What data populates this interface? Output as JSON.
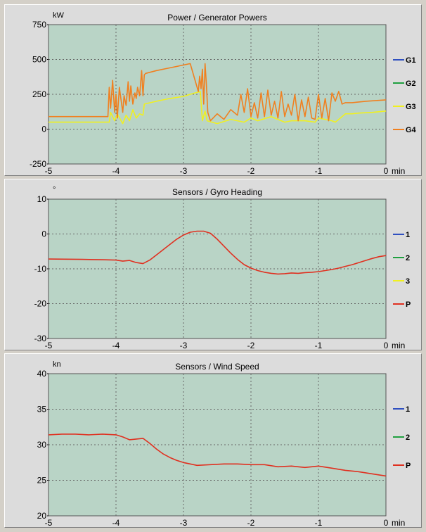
{
  "chart_data": [
    {
      "type": "line",
      "title": "Power / Generator Powers",
      "yunit": "kW",
      "xunit": "min",
      "ylim": [
        -250,
        750
      ],
      "yticks": [
        "750",
        "500",
        "250",
        "0",
        "-250"
      ],
      "ytick_values": [
        750,
        500,
        250,
        0,
        -250
      ],
      "xlim": [
        -5,
        0
      ],
      "xticks": [
        "-5",
        "-4",
        "-3",
        "-2",
        "-1",
        "0"
      ],
      "xtick_values": [
        -5,
        -4,
        -3,
        -2,
        -1,
        0
      ],
      "grid": true,
      "legend_position": "right",
      "series": [
        {
          "name": "G1",
          "color": "#3050c0",
          "x": [],
          "y": []
        },
        {
          "name": "G2",
          "color": "#20a040",
          "x": [],
          "y": []
        },
        {
          "name": "G3",
          "color": "#f0f020",
          "x": [
            -5,
            -4.1,
            -4.08,
            -4.02,
            -3.98,
            -3.9,
            -3.85,
            -3.8,
            -3.75,
            -3.7,
            -3.65,
            -3.6,
            -3.58,
            -3.4,
            -3.2,
            -3.0,
            -2.9,
            -2.75,
            -2.72,
            -2.68,
            -2.65,
            -2.5,
            -2.3,
            -2.1,
            -2.0,
            -1.9,
            -1.7,
            -1.5,
            -1.4,
            -1.2,
            -1.05,
            -1.0,
            -0.8,
            -0.75,
            -0.6,
            -0.5,
            -0.4,
            -0.2,
            0
          ],
          "y": [
            50,
            50,
            120,
            60,
            110,
            40,
            100,
            60,
            140,
            80,
            110,
            100,
            180,
            200,
            220,
            235,
            250,
            270,
            60,
            130,
            60,
            40,
            70,
            50,
            80,
            60,
            90,
            50,
            60,
            60,
            50,
            80,
            60,
            50,
            110,
            110,
            115,
            120,
            130
          ]
        },
        {
          "name": "G4",
          "color": "#f08020",
          "x": [
            -5,
            -4.12,
            -4.1,
            -4.08,
            -4.05,
            -4.02,
            -4.0,
            -3.98,
            -3.95,
            -3.9,
            -3.88,
            -3.85,
            -3.82,
            -3.8,
            -3.78,
            -3.75,
            -3.72,
            -3.7,
            -3.68,
            -3.65,
            -3.62,
            -3.6,
            -3.58,
            -3.56,
            -3.4,
            -3.2,
            -3.0,
            -2.9,
            -2.78,
            -2.76,
            -2.74,
            -2.72,
            -2.7,
            -2.68,
            -2.66,
            -2.64,
            -2.62,
            -2.6,
            -2.5,
            -2.4,
            -2.3,
            -2.2,
            -2.15,
            -2.1,
            -2.05,
            -2.0,
            -1.95,
            -1.9,
            -1.85,
            -1.8,
            -1.75,
            -1.7,
            -1.65,
            -1.6,
            -1.55,
            -1.5,
            -1.45,
            -1.4,
            -1.35,
            -1.3,
            -1.25,
            -1.2,
            -1.15,
            -1.1,
            -1.05,
            -1.0,
            -0.95,
            -0.9,
            -0.85,
            -0.8,
            -0.75,
            -0.7,
            -0.65,
            -0.6,
            -0.5,
            -0.3,
            0
          ],
          "y": [
            90,
            90,
            300,
            150,
            350,
            120,
            250,
            80,
            300,
            120,
            240,
            170,
            340,
            200,
            310,
            180,
            260,
            220,
            300,
            240,
            420,
            240,
            390,
            400,
            420,
            440,
            460,
            470,
            270,
            380,
            290,
            430,
            180,
            470,
            320,
            120,
            90,
            60,
            110,
            70,
            140,
            100,
            250,
            120,
            290,
            90,
            190,
            80,
            260,
            90,
            280,
            100,
            200,
            80,
            270,
            90,
            180,
            100,
            250,
            60,
            210,
            90,
            230,
            80,
            70,
            250,
            80,
            220,
            60,
            260,
            200,
            270,
            180,
            190,
            190,
            200,
            210
          ]
        }
      ]
    },
    {
      "type": "line",
      "title": "Sensors / Gyro Heading",
      "yunit": "°",
      "xunit": "min",
      "ylim": [
        -30,
        10
      ],
      "yticks": [
        "10",
        "0",
        "-10",
        "-20",
        "-30"
      ],
      "ytick_values": [
        10,
        0,
        -10,
        -20,
        -30
      ],
      "xlim": [
        -5,
        0
      ],
      "xticks": [
        "-5",
        "-4",
        "-3",
        "-2",
        "-1",
        "0"
      ],
      "xtick_values": [
        -5,
        -4,
        -3,
        -2,
        -1,
        0
      ],
      "grid": true,
      "legend_position": "right",
      "series": [
        {
          "name": "1",
          "color": "#3050c0",
          "x": [],
          "y": []
        },
        {
          "name": "2",
          "color": "#20a040",
          "x": [],
          "y": []
        },
        {
          "name": "3",
          "color": "#f0f020",
          "x": [],
          "y": []
        },
        {
          "name": "P",
          "color": "#e03020",
          "x": [
            -5,
            -4.5,
            -4.2,
            -4.0,
            -3.9,
            -3.8,
            -3.7,
            -3.6,
            -3.5,
            -3.4,
            -3.3,
            -3.2,
            -3.1,
            -3.0,
            -2.9,
            -2.8,
            -2.7,
            -2.6,
            -2.5,
            -2.4,
            -2.3,
            -2.2,
            -2.1,
            -2.0,
            -1.9,
            -1.8,
            -1.7,
            -1.6,
            -1.5,
            -1.4,
            -1.3,
            -1.2,
            -1.1,
            -1.0,
            -0.9,
            -0.8,
            -0.7,
            -0.6,
            -0.5,
            -0.4,
            -0.3,
            -0.2,
            -0.1,
            0
          ],
          "y": [
            -7.2,
            -7.3,
            -7.4,
            -7.5,
            -7.8,
            -7.6,
            -8.2,
            -8.5,
            -7.5,
            -6.0,
            -4.5,
            -3.0,
            -1.5,
            -0.3,
            0.5,
            0.8,
            0.8,
            0.2,
            -1.5,
            -3.5,
            -5.5,
            -7.3,
            -8.8,
            -9.8,
            -10.5,
            -11.0,
            -11.3,
            -11.5,
            -11.4,
            -11.2,
            -11.3,
            -11.1,
            -11.0,
            -10.8,
            -10.5,
            -10.2,
            -9.8,
            -9.3,
            -8.8,
            -8.2,
            -7.6,
            -7.0,
            -6.5,
            -6.2
          ]
        }
      ]
    },
    {
      "type": "line",
      "title": "Sensors / Wind Speed",
      "yunit": "kn",
      "xunit": "min",
      "ylim": [
        20,
        40
      ],
      "yticks": [
        "40",
        "35",
        "30",
        "25",
        "20"
      ],
      "ytick_values": [
        40,
        35,
        30,
        25,
        20
      ],
      "xlim": [
        -5,
        0
      ],
      "xticks": [
        "-5",
        "-4",
        "-3",
        "-2",
        "-1",
        "0"
      ],
      "xtick_values": [
        -5,
        -4,
        -3,
        -2,
        -1,
        0
      ],
      "grid": true,
      "legend_position": "right",
      "series": [
        {
          "name": "1",
          "color": "#3050c0",
          "x": [],
          "y": []
        },
        {
          "name": "2",
          "color": "#20a040",
          "x": [],
          "y": []
        },
        {
          "name": "P",
          "color": "#e03020",
          "x": [
            -5,
            -4.8,
            -4.6,
            -4.4,
            -4.2,
            -4.0,
            -3.9,
            -3.8,
            -3.7,
            -3.6,
            -3.5,
            -3.4,
            -3.3,
            -3.2,
            -3.1,
            -3.0,
            -2.9,
            -2.8,
            -2.6,
            -2.4,
            -2.2,
            -2.0,
            -1.8,
            -1.6,
            -1.4,
            -1.2,
            -1.0,
            -0.8,
            -0.6,
            -0.4,
            -0.2,
            0
          ],
          "y": [
            31.4,
            31.5,
            31.5,
            31.4,
            31.5,
            31.4,
            31.1,
            30.7,
            30.8,
            30.9,
            30.2,
            29.4,
            28.7,
            28.2,
            27.8,
            27.5,
            27.3,
            27.1,
            27.2,
            27.3,
            27.3,
            27.2,
            27.2,
            26.9,
            27.0,
            26.8,
            27.0,
            26.7,
            26.4,
            26.2,
            25.9,
            25.6
          ]
        }
      ]
    }
  ]
}
